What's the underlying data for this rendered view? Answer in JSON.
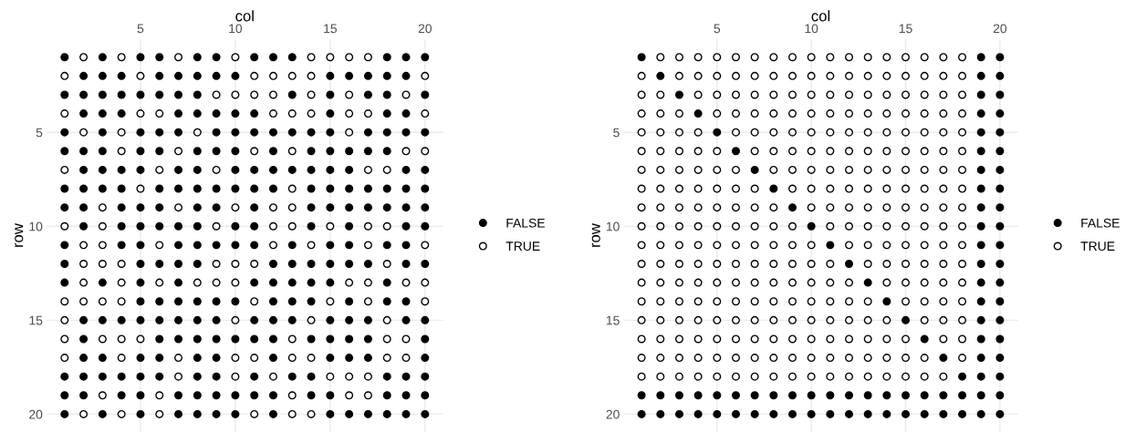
{
  "chart_data": [
    {
      "type": "scatter",
      "xlabel": "col",
      "ylabel": "row",
      "xlim": [
        0.05,
        20.95
      ],
      "ylim": [
        20.95,
        0.05
      ],
      "xticks": [
        5,
        10,
        15,
        20
      ],
      "yticks": [
        5,
        10,
        15,
        20
      ],
      "grid": true,
      "legend": "right",
      "marker": "circle",
      "series": [
        {
          "name": "FALSE",
          "color": "#000000",
          "x": [
            1,
            3,
            5,
            6,
            8,
            9,
            11,
            12,
            13,
            18,
            19,
            20,
            2,
            3,
            4,
            6,
            7,
            8,
            9,
            10,
            15,
            16,
            17,
            18,
            19,
            1,
            2,
            3,
            4,
            5,
            6,
            7,
            8,
            13,
            15,
            17,
            18,
            20,
            2,
            3,
            4,
            7,
            8,
            9,
            10,
            11,
            15,
            18,
            19,
            1,
            3,
            5,
            6,
            7,
            9,
            10,
            11,
            12,
            13,
            14,
            15,
            17,
            18,
            19,
            20,
            1,
            2,
            3,
            5,
            6,
            8,
            9,
            10,
            12,
            14,
            15,
            16,
            17,
            18,
            2,
            3,
            4,
            5,
            7,
            8,
            10,
            11,
            12,
            13,
            14,
            15,
            16,
            19,
            20,
            1,
            2,
            3,
            4,
            6,
            7,
            8,
            9,
            10,
            11,
            12,
            14,
            15,
            16,
            17,
            18,
            19,
            20,
            1,
            2,
            4,
            5,
            6,
            8,
            9,
            11,
            14,
            15,
            16,
            17,
            18,
            19,
            20,
            2,
            4,
            5,
            6,
            7,
            8,
            10,
            11,
            14,
            16,
            19,
            20,
            1,
            4,
            5,
            7,
            8,
            9,
            10,
            11,
            13,
            15,
            16,
            18,
            19,
            1,
            5,
            6,
            7,
            8,
            12,
            13,
            14,
            15,
            16,
            17,
            19,
            20,
            1,
            3,
            5,
            7,
            11,
            12,
            13,
            14,
            15,
            18,
            5,
            6,
            7,
            8,
            9,
            10,
            12,
            13,
            14,
            16,
            18,
            19,
            2,
            3,
            4,
            5,
            6,
            7,
            8,
            9,
            11,
            12,
            13,
            15,
            16,
            17,
            19,
            20,
            2,
            6,
            7,
            8,
            9,
            10,
            11,
            12,
            14,
            15,
            16,
            17,
            20,
            2,
            3,
            5,
            6,
            8,
            9,
            12,
            15,
            16,
            17,
            20,
            1,
            2,
            3,
            4,
            5,
            6,
            8,
            9,
            11,
            13,
            14,
            18,
            19,
            20,
            1,
            2,
            4,
            5,
            7,
            8,
            9,
            10,
            11,
            12,
            14,
            15,
            18,
            19,
            20,
            1,
            3,
            5,
            7,
            8,
            9,
            10,
            12,
            15,
            16,
            17,
            18,
            19,
            20
          ],
          "values": [
            1,
            1,
            1,
            1,
            1,
            1,
            1,
            1,
            1,
            1,
            1,
            1,
            2,
            2,
            2,
            2,
            2,
            2,
            2,
            2,
            2,
            2,
            2,
            2,
            2,
            3,
            3,
            3,
            3,
            3,
            3,
            3,
            3,
            3,
            3,
            3,
            3,
            3,
            4,
            4,
            4,
            4,
            4,
            4,
            4,
            4,
            4,
            4,
            4,
            5,
            5,
            5,
            5,
            5,
            5,
            5,
            5,
            5,
            5,
            5,
            5,
            5,
            5,
            5,
            5,
            6,
            6,
            6,
            6,
            6,
            6,
            6,
            6,
            6,
            6,
            6,
            6,
            6,
            6,
            7,
            7,
            7,
            7,
            7,
            7,
            7,
            7,
            7,
            7,
            7,
            7,
            7,
            7,
            7,
            8,
            8,
            8,
            8,
            8,
            8,
            8,
            8,
            8,
            8,
            8,
            8,
            8,
            8,
            8,
            8,
            8,
            8,
            9,
            9,
            9,
            9,
            9,
            9,
            9,
            9,
            9,
            9,
            9,
            9,
            9,
            9,
            9,
            10,
            10,
            10,
            10,
            10,
            10,
            10,
            10,
            10,
            10,
            10,
            10,
            11,
            11,
            11,
            11,
            11,
            11,
            11,
            11,
            11,
            11,
            11,
            11,
            11,
            12,
            12,
            12,
            12,
            12,
            12,
            12,
            12,
            12,
            12,
            12,
            12,
            12,
            13,
            13,
            13,
            13,
            13,
            13,
            13,
            13,
            13,
            13,
            14,
            14,
            14,
            14,
            14,
            14,
            14,
            14,
            14,
            14,
            14,
            14,
            15,
            15,
            15,
            15,
            15,
            15,
            15,
            15,
            15,
            15,
            15,
            15,
            15,
            15,
            15,
            15,
            16,
            16,
            16,
            16,
            16,
            16,
            16,
            16,
            16,
            16,
            16,
            16,
            16,
            17,
            17,
            17,
            17,
            17,
            17,
            17,
            17,
            17,
            17,
            17,
            18,
            18,
            18,
            18,
            18,
            18,
            18,
            18,
            18,
            18,
            18,
            18,
            18,
            18,
            19,
            19,
            19,
            19,
            19,
            19,
            19,
            19,
            19,
            19,
            19,
            19,
            19,
            19,
            19,
            20,
            20,
            20,
            20,
            20,
            20,
            20,
            20,
            20,
            20,
            20,
            20,
            20,
            20
          ]
        },
        {
          "name": "TRUE",
          "color": "#ffffff",
          "x": [
            2,
            4,
            7,
            10,
            14,
            15,
            16,
            17,
            1,
            5,
            11,
            12,
            13,
            14,
            20,
            9,
            10,
            11,
            12,
            14,
            16,
            19,
            1,
            5,
            6,
            12,
            13,
            14,
            16,
            17,
            20,
            2,
            4,
            8,
            16,
            4,
            7,
            11,
            13,
            19,
            20,
            1,
            6,
            9,
            17,
            18,
            5,
            13,
            3,
            7,
            10,
            12,
            13,
            1,
            3,
            9,
            12,
            13,
            15,
            17,
            18,
            2,
            3,
            6,
            12,
            14,
            17,
            20,
            2,
            3,
            4,
            9,
            10,
            11,
            18,
            2,
            4,
            6,
            8,
            9,
            10,
            16,
            17,
            19,
            20,
            1,
            2,
            3,
            4,
            11,
            15,
            17,
            20,
            1,
            10,
            14,
            18,
            1,
            3,
            4,
            5,
            13,
            18,
            19,
            1,
            4,
            7,
            10,
            11,
            13,
            14,
            18,
            19,
            7,
            10,
            12,
            15,
            16,
            17,
            3,
            6,
            13,
            16,
            17,
            2,
            4,
            6,
            11,
            13,
            14
          ],
          "values": [
            1,
            1,
            1,
            1,
            1,
            1,
            1,
            1,
            2,
            2,
            2,
            2,
            2,
            2,
            2,
            3,
            3,
            3,
            3,
            3,
            3,
            3,
            4,
            4,
            4,
            4,
            4,
            4,
            4,
            4,
            4,
            5,
            5,
            5,
            5,
            6,
            6,
            6,
            6,
            6,
            6,
            7,
            7,
            7,
            7,
            7,
            8,
            8,
            9,
            9,
            9,
            9,
            9,
            10,
            10,
            10,
            10,
            10,
            10,
            10,
            10,
            11,
            11,
            11,
            11,
            11,
            11,
            11,
            12,
            12,
            12,
            12,
            12,
            12,
            12,
            13,
            13,
            13,
            13,
            13,
            13,
            13,
            13,
            13,
            13,
            14,
            14,
            14,
            14,
            14,
            14,
            14,
            14,
            15,
            15,
            15,
            15,
            16,
            16,
            16,
            16,
            16,
            16,
            16,
            17,
            17,
            17,
            17,
            17,
            17,
            17,
            17,
            17,
            18,
            18,
            18,
            18,
            18,
            18,
            19,
            19,
            19,
            19,
            19,
            20,
            20,
            20,
            20,
            20,
            20
          ]
        }
      ]
    },
    {
      "type": "scatter",
      "xlabel": "col",
      "ylabel": "row",
      "xlim": [
        0.05,
        20.95
      ],
      "ylim": [
        20.95,
        0.05
      ],
      "xticks": [
        5,
        10,
        15,
        20
      ],
      "yticks": [
        5,
        10,
        15,
        20
      ],
      "grid": true,
      "legend": "right",
      "marker": "circle",
      "series": [
        {
          "name": "FALSE",
          "color": "#000000",
          "x": [
            1,
            19,
            20,
            2,
            19,
            20,
            3,
            19,
            20,
            4,
            19,
            20,
            5,
            19,
            20,
            6,
            19,
            20,
            7,
            19,
            20,
            8,
            19,
            20,
            9,
            19,
            20,
            10,
            19,
            20,
            11,
            19,
            20,
            12,
            19,
            20,
            13,
            19,
            20,
            14,
            19,
            20,
            15,
            19,
            20,
            16,
            19,
            20,
            17,
            19,
            20,
            18,
            19,
            20,
            1,
            2,
            3,
            4,
            5,
            6,
            7,
            8,
            9,
            10,
            11,
            12,
            13,
            14,
            15,
            16,
            17,
            18,
            19,
            20,
            1,
            2,
            3,
            4,
            5,
            6,
            7,
            8,
            9,
            10,
            11,
            12,
            13,
            14,
            15,
            16,
            17,
            18,
            19,
            20
          ],
          "values": [
            1,
            1,
            1,
            2,
            2,
            2,
            3,
            3,
            3,
            4,
            4,
            4,
            5,
            5,
            5,
            6,
            6,
            6,
            7,
            7,
            7,
            8,
            8,
            8,
            9,
            9,
            9,
            10,
            10,
            10,
            11,
            11,
            11,
            12,
            12,
            12,
            13,
            13,
            13,
            14,
            14,
            14,
            15,
            15,
            15,
            16,
            16,
            16,
            17,
            17,
            17,
            18,
            18,
            18,
            19,
            19,
            19,
            19,
            19,
            19,
            19,
            19,
            19,
            19,
            19,
            19,
            19,
            19,
            19,
            19,
            19,
            19,
            19,
            19,
            20,
            20,
            20,
            20,
            20,
            20,
            20,
            20,
            20,
            20,
            20,
            20,
            20,
            20,
            20,
            20,
            20,
            20,
            20,
            20
          ]
        },
        {
          "name": "TRUE",
          "color": "#ffffff",
          "x": [
            2,
            3,
            4,
            5,
            6,
            7,
            8,
            9,
            10,
            11,
            12,
            13,
            14,
            15,
            16,
            17,
            18,
            1,
            3,
            4,
            5,
            6,
            7,
            8,
            9,
            10,
            11,
            12,
            13,
            14,
            15,
            16,
            17,
            18,
            1,
            2,
            4,
            5,
            6,
            7,
            8,
            9,
            10,
            11,
            12,
            13,
            14,
            15,
            16,
            17,
            18,
            1,
            2,
            3,
            5,
            6,
            7,
            8,
            9,
            10,
            11,
            12,
            13,
            14,
            15,
            16,
            17,
            18,
            1,
            2,
            3,
            4,
            6,
            7,
            8,
            9,
            10,
            11,
            12,
            13,
            14,
            15,
            16,
            17,
            18,
            1,
            2,
            3,
            4,
            5,
            7,
            8,
            9,
            10,
            11,
            12,
            13,
            14,
            15,
            16,
            17,
            18,
            1,
            2,
            3,
            4,
            5,
            6,
            8,
            9,
            10,
            11,
            12,
            13,
            14,
            15,
            16,
            17,
            18,
            1,
            2,
            3,
            4,
            5,
            6,
            7,
            9,
            10,
            11,
            12,
            13,
            14,
            15,
            16,
            17,
            18,
            1,
            2,
            3,
            4,
            5,
            6,
            7,
            8,
            10,
            11,
            12,
            13,
            14,
            15,
            16,
            17,
            18,
            1,
            2,
            3,
            4,
            5,
            6,
            7,
            8,
            9,
            11,
            12,
            13,
            14,
            15,
            16,
            17,
            18,
            1,
            2,
            3,
            4,
            5,
            6,
            7,
            8,
            9,
            10,
            12,
            13,
            14,
            15,
            16,
            17,
            18,
            1,
            2,
            3,
            4,
            5,
            6,
            7,
            8,
            9,
            10,
            11,
            13,
            14,
            15,
            16,
            17,
            18,
            1,
            2,
            3,
            4,
            5,
            6,
            7,
            8,
            9,
            10,
            11,
            12,
            14,
            15,
            16,
            17,
            18,
            1,
            2,
            3,
            4,
            5,
            6,
            7,
            8,
            9,
            10,
            11,
            12,
            13,
            15,
            16,
            17,
            18,
            1,
            2,
            3,
            4,
            5,
            6,
            7,
            8,
            9,
            10,
            11,
            12,
            13,
            14,
            16,
            17,
            18,
            1,
            2,
            3,
            4,
            5,
            6,
            7,
            8,
            9,
            10,
            11,
            12,
            13,
            14,
            15,
            17,
            18,
            1,
            2,
            3,
            4,
            5,
            6,
            7,
            8,
            9,
            10,
            11,
            12,
            13,
            14,
            15,
            16,
            18,
            1,
            2,
            3,
            4,
            5,
            6,
            7,
            8,
            9,
            10,
            11,
            12,
            13,
            14,
            15,
            16,
            17
          ],
          "values": [
            1,
            1,
            1,
            1,
            1,
            1,
            1,
            1,
            1,
            1,
            1,
            1,
            1,
            1,
            1,
            1,
            1,
            2,
            2,
            2,
            2,
            2,
            2,
            2,
            2,
            2,
            2,
            2,
            2,
            2,
            2,
            2,
            2,
            2,
            3,
            3,
            3,
            3,
            3,
            3,
            3,
            3,
            3,
            3,
            3,
            3,
            3,
            3,
            3,
            3,
            3,
            4,
            4,
            4,
            4,
            4,
            4,
            4,
            4,
            4,
            4,
            4,
            4,
            4,
            4,
            4,
            4,
            4,
            5,
            5,
            5,
            5,
            5,
            5,
            5,
            5,
            5,
            5,
            5,
            5,
            5,
            5,
            5,
            5,
            5,
            6,
            6,
            6,
            6,
            6,
            6,
            6,
            6,
            6,
            6,
            6,
            6,
            6,
            6,
            6,
            6,
            6,
            7,
            7,
            7,
            7,
            7,
            7,
            7,
            7,
            7,
            7,
            7,
            7,
            7,
            7,
            7,
            7,
            7,
            8,
            8,
            8,
            8,
            8,
            8,
            8,
            8,
            8,
            8,
            8,
            8,
            8,
            8,
            8,
            8,
            8,
            9,
            9,
            9,
            9,
            9,
            9,
            9,
            9,
            9,
            9,
            9,
            9,
            9,
            9,
            9,
            9,
            9,
            10,
            10,
            10,
            10,
            10,
            10,
            10,
            10,
            10,
            10,
            10,
            10,
            10,
            10,
            10,
            10,
            10,
            11,
            11,
            11,
            11,
            11,
            11,
            11,
            11,
            11,
            11,
            11,
            11,
            11,
            11,
            11,
            11,
            11,
            12,
            12,
            12,
            12,
            12,
            12,
            12,
            12,
            12,
            12,
            12,
            12,
            12,
            12,
            12,
            12,
            12,
            13,
            13,
            13,
            13,
            13,
            13,
            13,
            13,
            13,
            13,
            13,
            13,
            13,
            13,
            13,
            13,
            13,
            14,
            14,
            14,
            14,
            14,
            14,
            14,
            14,
            14,
            14,
            14,
            14,
            14,
            14,
            14,
            14,
            14,
            15,
            15,
            15,
            15,
            15,
            15,
            15,
            15,
            15,
            15,
            15,
            15,
            15,
            15,
            15,
            15,
            15,
            16,
            16,
            16,
            16,
            16,
            16,
            16,
            16,
            16,
            16,
            16,
            16,
            16,
            16,
            16,
            16,
            16,
            17,
            17,
            17,
            17,
            17,
            17,
            17,
            17,
            17,
            17,
            17,
            17,
            17,
            17,
            17,
            17,
            17,
            18,
            18,
            18,
            18,
            18,
            18,
            18,
            18,
            18,
            18,
            18,
            18,
            18,
            18,
            18,
            18,
            18
          ]
        }
      ]
    }
  ]
}
